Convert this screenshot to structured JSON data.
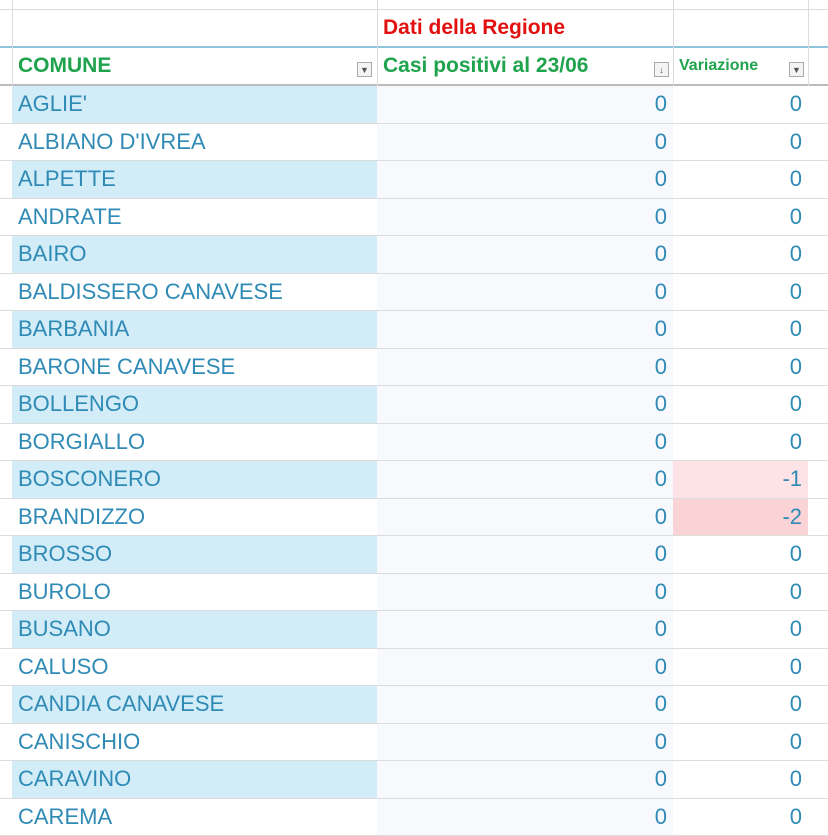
{
  "header": {
    "group_label": "Dati della Regione",
    "columns": [
      {
        "label": "COMUNE",
        "filter_icon": "dropdown-arrow-icon"
      },
      {
        "label": "Casi positivi al 23/06",
        "filter_icon": "sort-descending-filter-icon"
      },
      {
        "label": "Variazione",
        "filter_icon": "dropdown-arrow-icon"
      }
    ]
  },
  "colors": {
    "text": "#2f8ab5",
    "header": "#1fa34c",
    "group": "#e31010",
    "band": "#d2edf8",
    "neg1": "#fde3e6",
    "neg2": "#fad3d7"
  },
  "rows": [
    {
      "comune": "AGLIE'",
      "casi": "0",
      "variazione": "0"
    },
    {
      "comune": "ALBIANO D'IVREA",
      "casi": "0",
      "variazione": "0"
    },
    {
      "comune": "ALPETTE",
      "casi": "0",
      "variazione": "0"
    },
    {
      "comune": "ANDRATE",
      "casi": "0",
      "variazione": "0"
    },
    {
      "comune": "BAIRO",
      "casi": "0",
      "variazione": "0"
    },
    {
      "comune": "BALDISSERO CANAVESE",
      "casi": "0",
      "variazione": "0"
    },
    {
      "comune": "BARBANIA",
      "casi": "0",
      "variazione": "0"
    },
    {
      "comune": "BARONE CANAVESE",
      "casi": "0",
      "variazione": "0"
    },
    {
      "comune": "BOLLENGO",
      "casi": "0",
      "variazione": "0"
    },
    {
      "comune": "BORGIALLO",
      "casi": "0",
      "variazione": "0"
    },
    {
      "comune": "BOSCONERO",
      "casi": "0",
      "variazione": "-1"
    },
    {
      "comune": "BRANDIZZO",
      "casi": "0",
      "variazione": "-2"
    },
    {
      "comune": "BROSSO",
      "casi": "0",
      "variazione": "0"
    },
    {
      "comune": "BUROLO",
      "casi": "0",
      "variazione": "0"
    },
    {
      "comune": "BUSANO",
      "casi": "0",
      "variazione": "0"
    },
    {
      "comune": "CALUSO",
      "casi": "0",
      "variazione": "0"
    },
    {
      "comune": "CANDIA CANAVESE",
      "casi": "0",
      "variazione": "0"
    },
    {
      "comune": "CANISCHIO",
      "casi": "0",
      "variazione": "0"
    },
    {
      "comune": "CARAVINO",
      "casi": "0",
      "variazione": "0"
    },
    {
      "comune": "CAREMA",
      "casi": "0",
      "variazione": "0"
    }
  ]
}
